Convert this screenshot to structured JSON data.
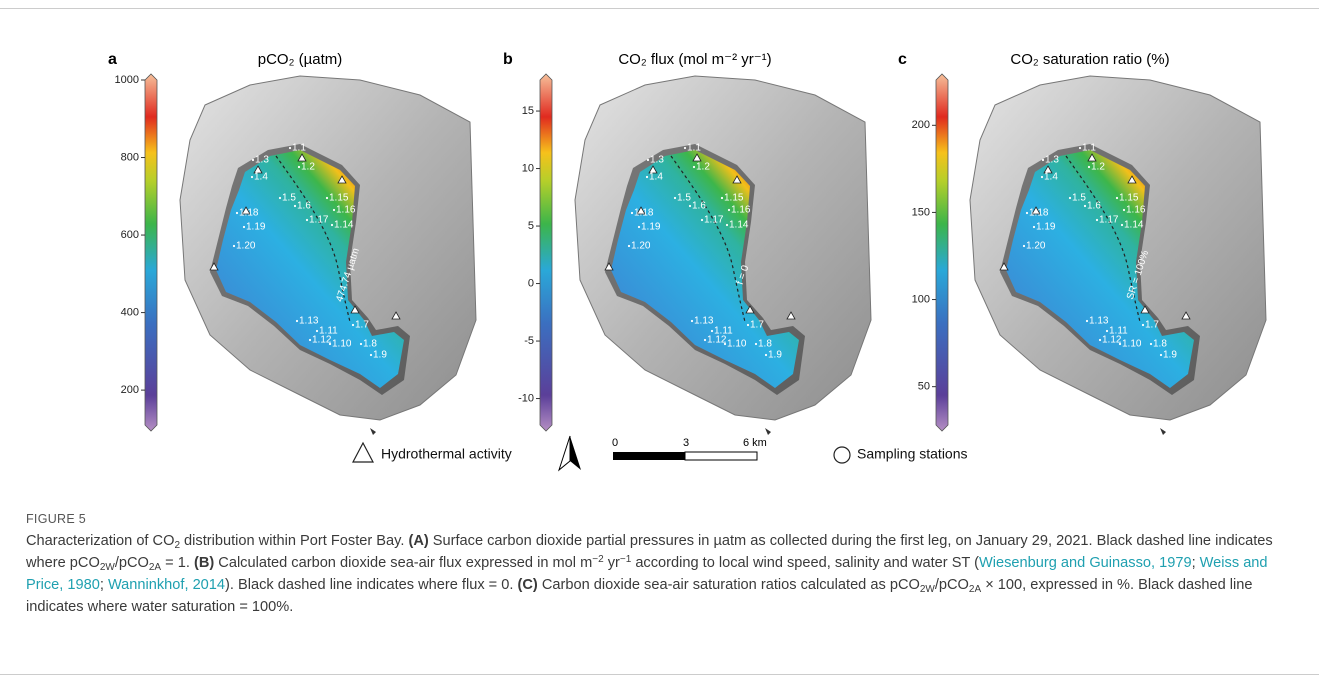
{
  "figure": {
    "panels": [
      {
        "letter": "a",
        "title": "pCO₂ (µatm)",
        "colorbar": {
          "lim": [
            110,
            1000
          ],
          "ticks": [
            200,
            400,
            600,
            800,
            1000
          ]
        },
        "isoline_label": "474.74 µatm"
      },
      {
        "letter": "b",
        "title": "CO₂ flux (mol m⁻² yr⁻¹)",
        "colorbar": {
          "lim": [
            -12.3,
            17.7
          ],
          "ticks": [
            -10,
            -5,
            0,
            5,
            10,
            15
          ]
        },
        "isoline_label": "f = 0"
      },
      {
        "letter": "c",
        "title": "CO₂ saturation ratio (%)",
        "colorbar": {
          "lim": [
            28,
            226
          ],
          "ticks": [
            50,
            100,
            150,
            200
          ]
        },
        "isoline_label": "SR = 100%"
      }
    ],
    "stations": [
      "1.1",
      "1.3",
      "1.2",
      "1.4",
      "1.5",
      "1.15",
      "1.6",
      "1.16",
      "1.18",
      "1.17",
      "1.14",
      "1.19",
      "1.20",
      "1.13",
      "1.7",
      "1.11",
      "1.12",
      "1.10",
      "1.8",
      "1.9"
    ],
    "legend": {
      "hydrothermal": "Hydrothermal activity",
      "scale": [
        "0",
        "3",
        "6 km"
      ],
      "sampling": "Sampling stations"
    },
    "caption": {
      "label": "FIGURE 5",
      "text": [
        "Characterization of CO",
        "2",
        " distribution within Port Foster Bay. ",
        "(A)",
        " Surface carbon dioxide partial pressures in µatm as collected during the first leg, on January 29, 2021. Black dashed line indicates where pCO",
        "2W",
        "/pCO",
        "2A",
        " = 1. ",
        "(B)",
        " Calculated carbon dioxide sea-air flux expressed in mol m",
        "−2",
        " yr",
        "−1",
        " according to local wind speed, salinity and water ST (",
        "Wiesenburg and Guinasso, 1979",
        "; ",
        "Weiss and Price, 1980",
        "; ",
        "Wanninkhof, 2014",
        "). Black dashed line indicates where flux = 0. ",
        "(C)",
        " Carbon dioxide sea-air saturation ratios calculated as pCO",
        "2W",
        "/pCO",
        "2A",
        " × 100, expressed in %. Black dashed line indicates where water saturation = 100%."
      ]
    }
  }
}
